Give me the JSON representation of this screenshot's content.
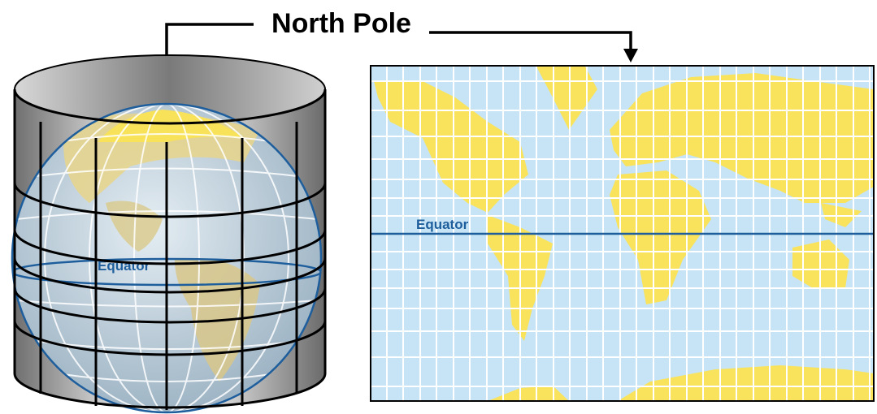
{
  "title": "North Pole",
  "globe": {
    "label": "Equator"
  },
  "map": {
    "label": "Equator"
  }
}
